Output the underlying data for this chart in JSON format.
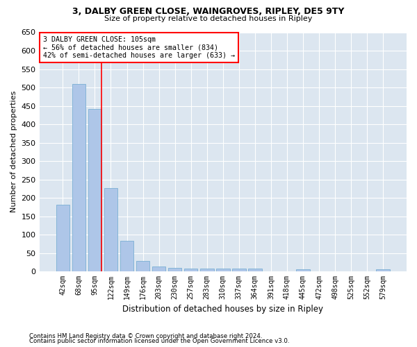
{
  "title": "3, DALBY GREEN CLOSE, WAINGROVES, RIPLEY, DE5 9TY",
  "subtitle": "Size of property relative to detached houses in Ripley",
  "xlabel": "Distribution of detached houses by size in Ripley",
  "ylabel": "Number of detached properties",
  "bar_color": "#aec6e8",
  "bar_edge_color": "#7aafd4",
  "background_color": "#dce6f0",
  "grid_color": "#ffffff",
  "fig_bg_color": "#ffffff",
  "categories": [
    "42sqm",
    "68sqm",
    "95sqm",
    "122sqm",
    "149sqm",
    "176sqm",
    "203sqm",
    "230sqm",
    "257sqm",
    "283sqm",
    "310sqm",
    "337sqm",
    "364sqm",
    "391sqm",
    "418sqm",
    "445sqm",
    "472sqm",
    "498sqm",
    "525sqm",
    "552sqm",
    "579sqm"
  ],
  "values": [
    181,
    509,
    441,
    227,
    84,
    28,
    14,
    9,
    7,
    7,
    7,
    7,
    8,
    0,
    0,
    5,
    0,
    0,
    0,
    0,
    5
  ],
  "property_line_x": 2,
  "property_line_label": "3 DALBY GREEN CLOSE: 105sqm",
  "annotation_line1": "← 56% of detached houses are smaller (834)",
  "annotation_line2": "42% of semi-detached houses are larger (633) →",
  "ylim": [
    0,
    650
  ],
  "yticks": [
    0,
    50,
    100,
    150,
    200,
    250,
    300,
    350,
    400,
    450,
    500,
    550,
    600,
    650
  ],
  "footnote1": "Contains HM Land Registry data © Crown copyright and database right 2024.",
  "footnote2": "Contains public sector information licensed under the Open Government Licence v3.0."
}
